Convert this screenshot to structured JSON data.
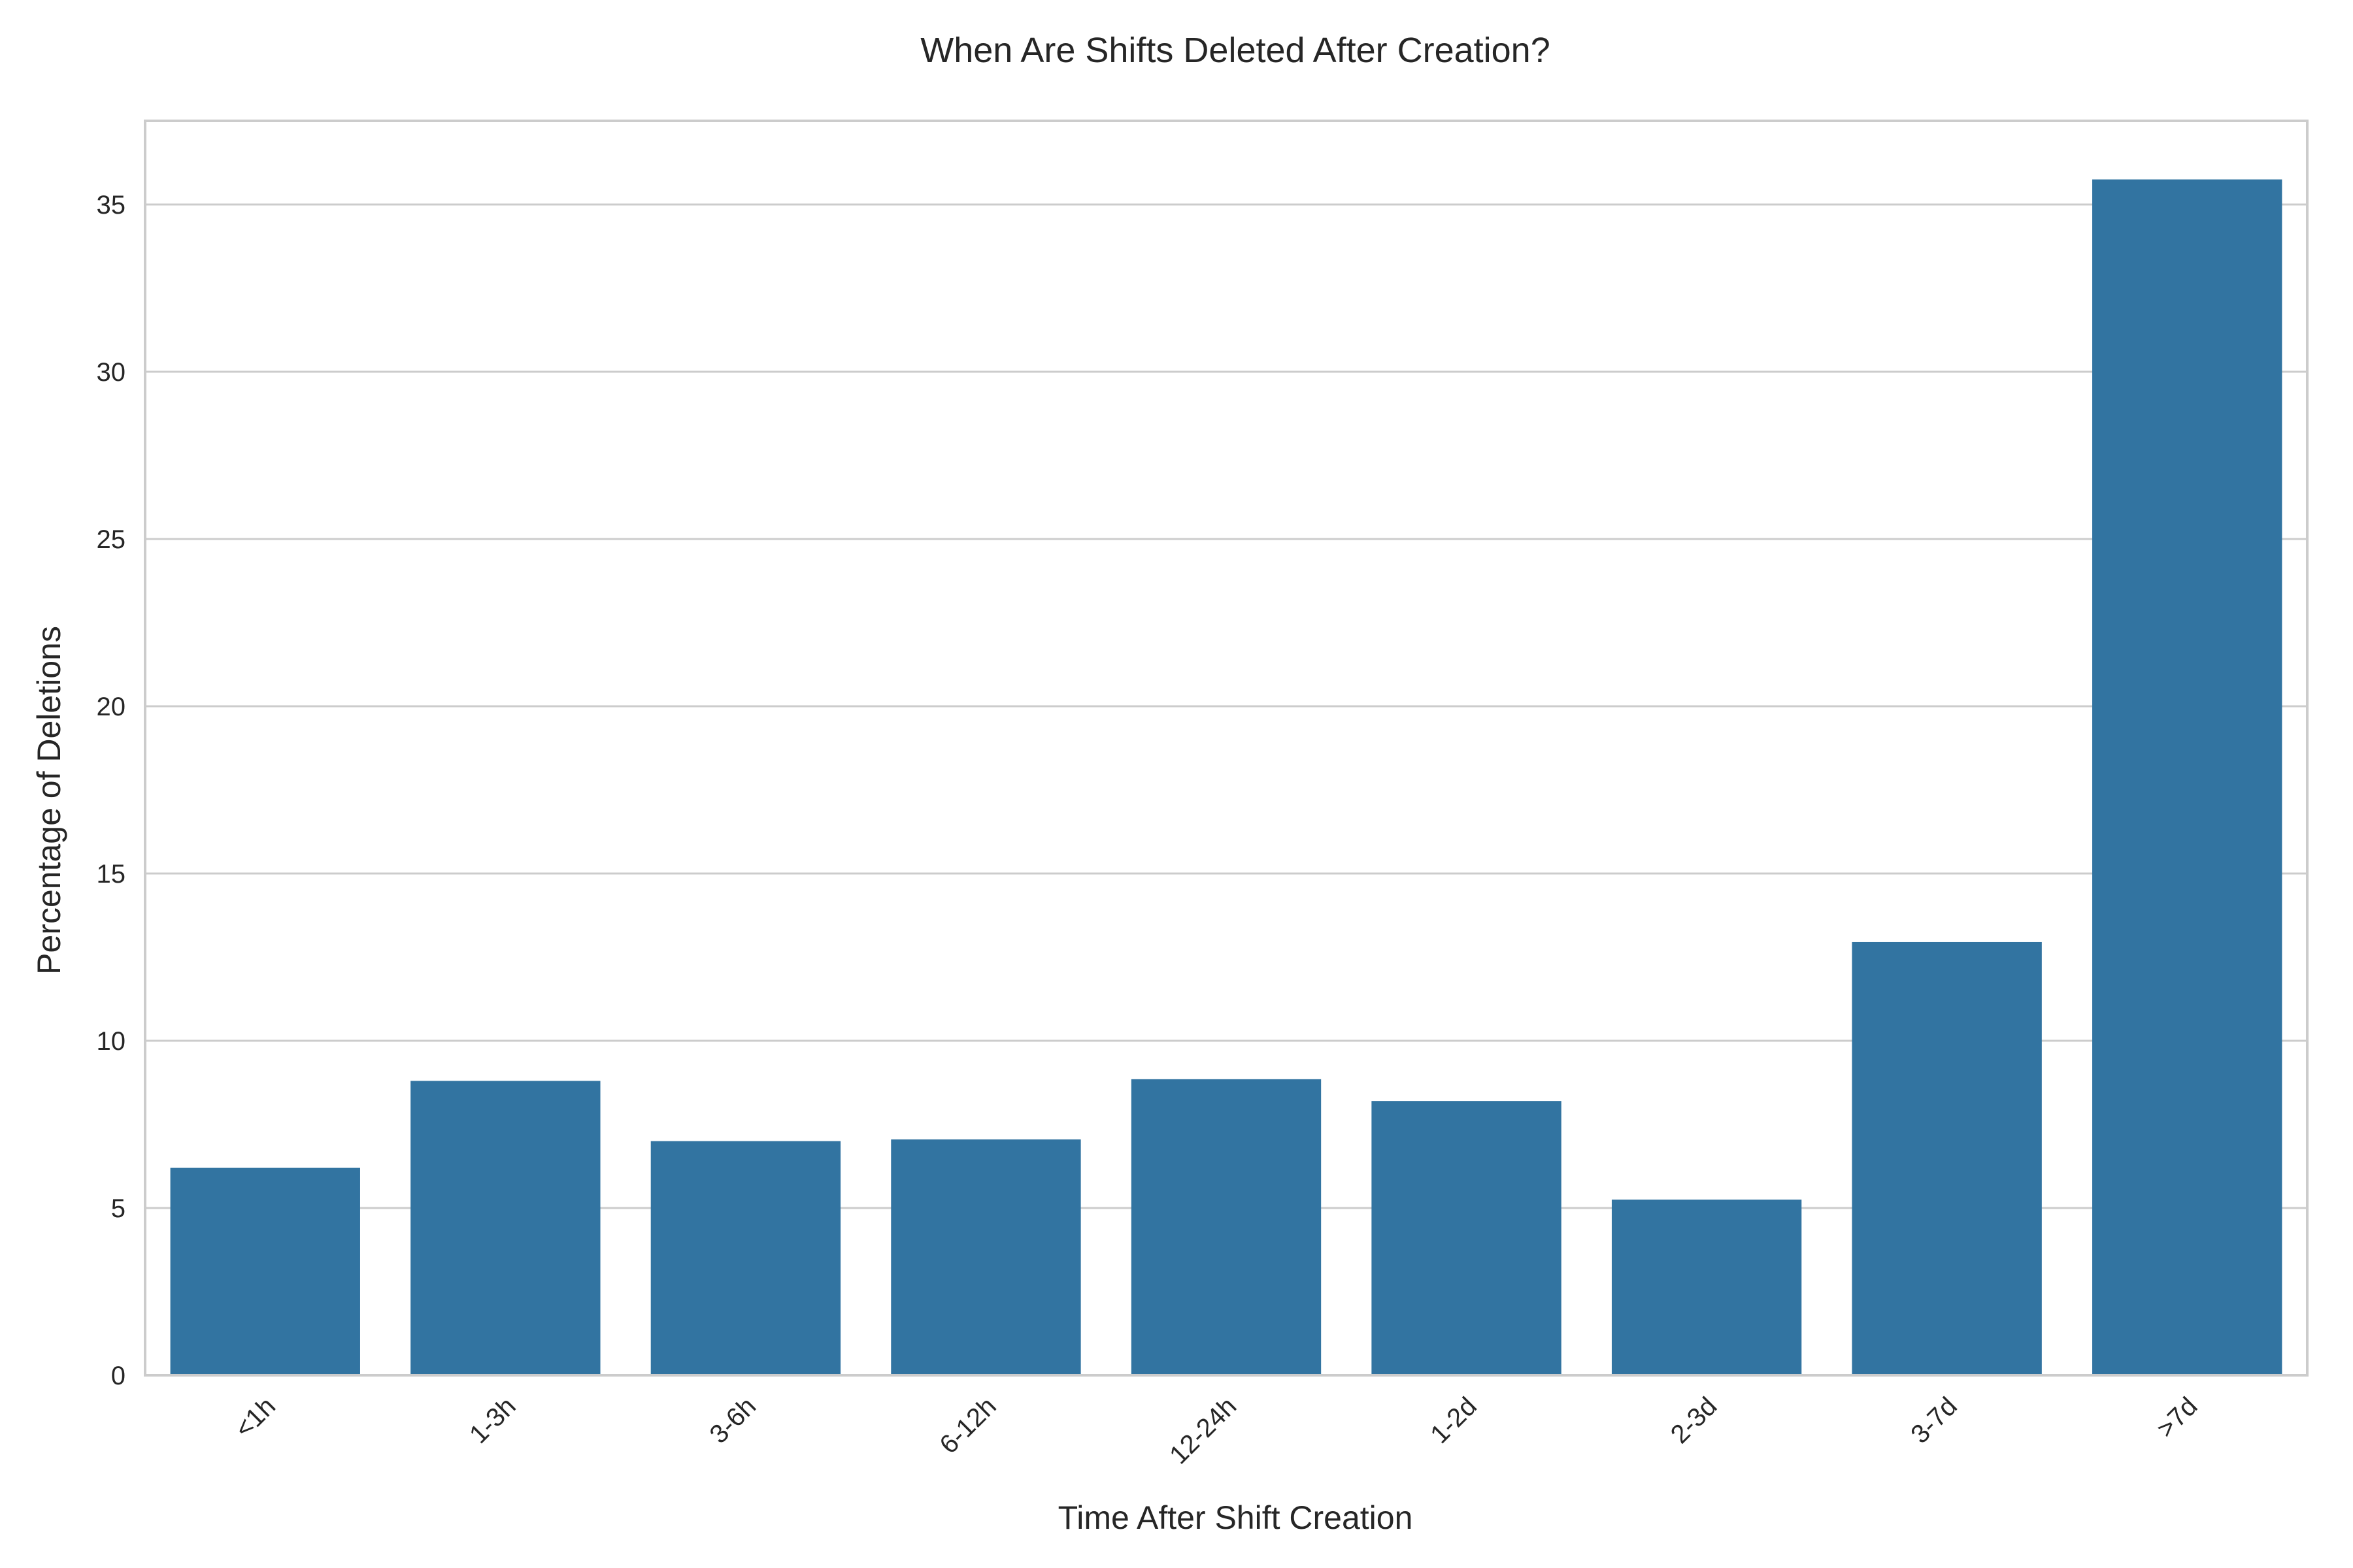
{
  "chart_data": {
    "type": "bar",
    "title": "When Are Shifts Deleted After Creation?",
    "xlabel": "Time After Shift Creation",
    "ylabel": "Percentage of Deletions",
    "categories": [
      "<1h",
      "1-3h",
      "3-6h",
      "6-12h",
      "12-24h",
      "1-2d",
      "2-3d",
      "3-7d",
      ">7d"
    ],
    "values": [
      6.2,
      8.8,
      7.0,
      7.05,
      8.85,
      8.2,
      5.25,
      12.95,
      35.75
    ],
    "ylim": [
      0,
      37.5
    ],
    "yticks": [
      0,
      5,
      10,
      15,
      20,
      25,
      30,
      35
    ],
    "grid": true,
    "bar_color": "#3274a1"
  }
}
